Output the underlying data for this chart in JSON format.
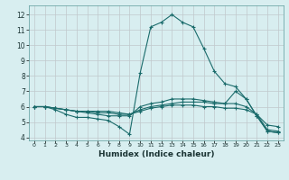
{
  "xlabel": "Humidex (Indice chaleur)",
  "bg_color": "#d8eef0",
  "grid_color": "#c0c8cc",
  "line_color": "#1a6b6b",
  "xlim": [
    -0.5,
    23.5
  ],
  "ylim": [
    3.8,
    12.6
  ],
  "yticks": [
    4,
    5,
    6,
    7,
    8,
    9,
    10,
    11,
    12
  ],
  "xticks": [
    0,
    1,
    2,
    3,
    4,
    5,
    6,
    7,
    8,
    9,
    10,
    11,
    12,
    13,
    14,
    15,
    16,
    17,
    18,
    19,
    20,
    21,
    22,
    23
  ],
  "lines": [
    {
      "x": [
        0,
        1,
        2,
        3,
        4,
        5,
        6,
        7,
        8,
        9,
        10,
        11,
        12,
        13,
        14,
        15,
        16,
        17,
        18,
        19,
        20,
        21,
        22,
        23
      ],
      "y": [
        6.0,
        6.0,
        5.8,
        5.5,
        5.3,
        5.3,
        5.2,
        5.1,
        4.7,
        4.2,
        8.2,
        11.2,
        11.5,
        12.0,
        11.5,
        11.2,
        9.8,
        8.3,
        7.5,
        7.3,
        6.5,
        5.4,
        4.4,
        4.3
      ]
    },
    {
      "x": [
        0,
        1,
        2,
        3,
        4,
        5,
        6,
        7,
        8,
        9,
        10,
        11,
        12,
        13,
        14,
        15,
        16,
        17,
        18,
        19,
        20,
        21,
        22,
        23
      ],
      "y": [
        6.0,
        6.0,
        5.9,
        5.8,
        5.7,
        5.6,
        5.5,
        5.4,
        5.4,
        5.4,
        6.0,
        6.2,
        6.3,
        6.5,
        6.5,
        6.5,
        6.4,
        6.3,
        6.2,
        7.0,
        6.5,
        5.4,
        4.4,
        4.3
      ]
    },
    {
      "x": [
        0,
        1,
        2,
        3,
        4,
        5,
        6,
        7,
        8,
        9,
        10,
        11,
        12,
        13,
        14,
        15,
        16,
        17,
        18,
        19,
        20,
        21,
        22,
        23
      ],
      "y": [
        6.0,
        6.0,
        5.9,
        5.8,
        5.7,
        5.7,
        5.7,
        5.7,
        5.6,
        5.5,
        5.8,
        6.0,
        6.1,
        6.2,
        6.3,
        6.3,
        6.3,
        6.2,
        6.2,
        6.2,
        6.0,
        5.5,
        4.5,
        4.4
      ]
    },
    {
      "x": [
        0,
        1,
        2,
        3,
        4,
        5,
        6,
        7,
        8,
        9,
        10,
        11,
        12,
        13,
        14,
        15,
        16,
        17,
        18,
        19,
        20,
        21,
        22,
        23
      ],
      "y": [
        6.0,
        6.0,
        5.9,
        5.8,
        5.7,
        5.7,
        5.6,
        5.6,
        5.5,
        5.5,
        5.7,
        5.9,
        6.0,
        6.1,
        6.1,
        6.1,
        6.0,
        6.0,
        5.9,
        5.9,
        5.8,
        5.5,
        4.8,
        4.7
      ]
    }
  ]
}
